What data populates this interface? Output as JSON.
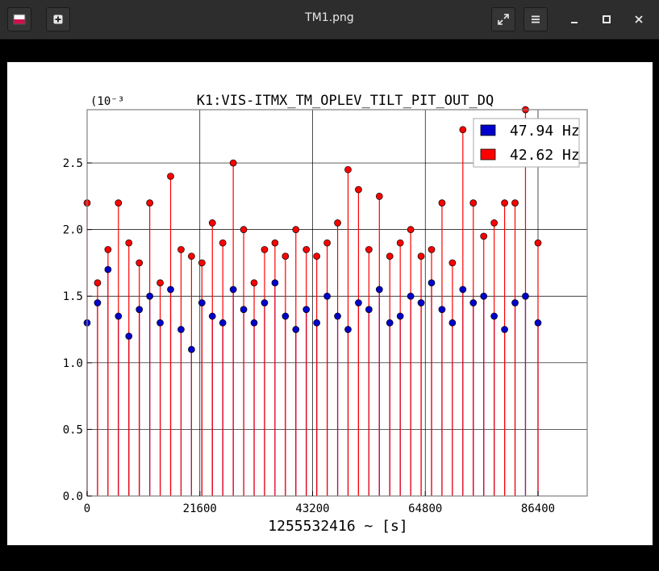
{
  "window": {
    "title": "TM1.png",
    "icons": {
      "app": "image-app-icon",
      "new_tab": "plus-square-icon",
      "fullscreen": "expand-arrows-icon",
      "menu": "hamburger-menu-icon",
      "minimize": "minimize-icon",
      "maximize": "maximize-icon",
      "close": "close-icon"
    }
  },
  "colors": {
    "series_blue": "#0000cc",
    "series_red": "#ff0000"
  },
  "chart_data": {
    "type": "scatter",
    "title": "K1:VIS-ITMX_TM_OPLEV_TILT_PIT_OUT_DQ",
    "xlabel": "1255532416 ~ [s]",
    "ylabel": "",
    "y_multiplier": "(10⁻³",
    "xlim": [
      0,
      86400
    ],
    "ylim": [
      0,
      2.9
    ],
    "xticks": [
      0,
      21600,
      43200,
      64800,
      86400
    ],
    "xtick_labels": [
      "0",
      "21600",
      "43200",
      "64800",
      "86400"
    ],
    "yticks": [
      0.0,
      0.5,
      1.0,
      1.5,
      2.0,
      2.5
    ],
    "ytick_labels": [
      "0.0",
      "0.5",
      "1.0",
      "1.5",
      "2.0",
      "2.5"
    ],
    "grid": true,
    "legend_position": "top-right",
    "series": [
      {
        "name": "47.94 Hz",
        "style": "stem",
        "x": [
          0,
          2000,
          4000,
          6000,
          8000,
          10000,
          12000,
          14000,
          16000,
          18000,
          20000,
          22000,
          24000,
          26000,
          28000,
          30000,
          32000,
          34000,
          36000,
          38000,
          40000,
          42000,
          44000,
          46000,
          48000,
          50000,
          52000,
          54000,
          56000,
          58000,
          60000,
          62000,
          64000,
          66000,
          68000,
          70000,
          72000,
          74000,
          76000,
          78000,
          80000,
          82000,
          84000,
          86400
        ],
        "values": [
          1.3,
          1.45,
          1.7,
          1.35,
          1.2,
          1.4,
          1.5,
          1.3,
          1.55,
          1.25,
          1.1,
          1.45,
          1.35,
          1.3,
          1.55,
          1.4,
          1.3,
          1.45,
          1.6,
          1.35,
          1.25,
          1.4,
          1.3,
          1.5,
          1.35,
          1.25,
          1.45,
          1.4,
          1.55,
          1.3,
          1.35,
          1.5,
          1.45,
          1.6,
          1.4,
          1.3,
          1.55,
          1.45,
          1.5,
          1.35,
          1.25,
          1.45,
          1.5,
          1.3
        ]
      },
      {
        "name": "42.62 Hz",
        "style": "stem",
        "x": [
          0,
          2000,
          4000,
          6000,
          8000,
          10000,
          12000,
          14000,
          16000,
          18000,
          20000,
          22000,
          24000,
          26000,
          28000,
          30000,
          32000,
          34000,
          36000,
          38000,
          40000,
          42000,
          44000,
          46000,
          48000,
          50000,
          52000,
          54000,
          56000,
          58000,
          60000,
          62000,
          64000,
          66000,
          68000,
          70000,
          72000,
          74000,
          76000,
          78000,
          80000,
          82000,
          84000,
          86400
        ],
        "values": [
          2.2,
          1.6,
          1.85,
          2.2,
          1.9,
          1.75,
          2.2,
          1.6,
          2.4,
          1.85,
          1.8,
          1.75,
          2.05,
          1.9,
          2.5,
          2.0,
          1.6,
          1.85,
          1.9,
          1.8,
          2.0,
          1.85,
          1.8,
          1.9,
          2.05,
          2.45,
          2.3,
          1.85,
          2.25,
          1.8,
          1.9,
          2.0,
          1.8,
          1.85,
          2.2,
          1.75,
          2.75,
          2.2,
          1.95,
          2.05,
          2.2,
          2.2,
          2.9,
          1.9
        ]
      }
    ]
  }
}
